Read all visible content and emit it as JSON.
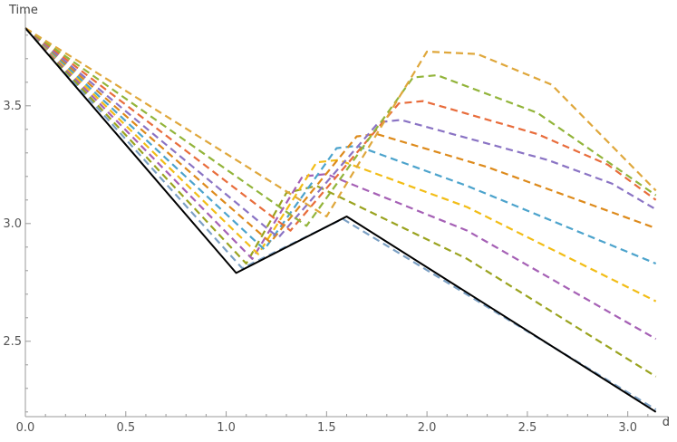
{
  "chart_data": {
    "type": "line",
    "title": "",
    "xlabel": "d",
    "ylabel": "Time",
    "xlim": [
      0,
      3.2
    ],
    "ylim": [
      2.18,
      3.88
    ],
    "grid": false,
    "legend": "none",
    "x_ticks": [
      "0.0",
      "0.5",
      "1.0",
      "1.5",
      "2.0",
      "2.5",
      "3.0"
    ],
    "x_tick_values": [
      0,
      0.5,
      1.0,
      1.5,
      2.0,
      2.5,
      3.0
    ],
    "y_ticks": [
      "2.5",
      "3.0",
      "3.5"
    ],
    "y_tick_values": [
      2.5,
      3.0,
      3.5
    ],
    "series": [
      {
        "color": "#000000",
        "dashed": false,
        "points": [
          [
            0,
            3.83
          ],
          [
            1.05,
            2.79
          ],
          [
            1.6,
            3.03
          ],
          [
            3.14,
            2.2
          ]
        ]
      },
      {
        "color": "#7ba0c4",
        "dashed": true,
        "points": [
          [
            0,
            3.83
          ],
          [
            1.08,
            2.81
          ],
          [
            1.58,
            3.02
          ],
          [
            3.14,
            2.21
          ]
        ]
      },
      {
        "color": "#9aa31f",
        "dashed": true,
        "points": [
          [
            0,
            3.83
          ],
          [
            1.1,
            2.83
          ],
          [
            1.3,
            3.13
          ],
          [
            1.45,
            3.16
          ],
          [
            2.2,
            2.85
          ],
          [
            3.14,
            2.35
          ]
        ]
      },
      {
        "color": "#a560b5",
        "dashed": true,
        "points": [
          [
            0,
            3.83
          ],
          [
            1.13,
            2.85
          ],
          [
            1.38,
            3.2
          ],
          [
            1.5,
            3.21
          ],
          [
            2.2,
            2.97
          ],
          [
            3.14,
            2.51
          ]
        ]
      },
      {
        "color": "#f2bd16",
        "dashed": true,
        "points": [
          [
            0,
            3.83
          ],
          [
            1.16,
            2.87
          ],
          [
            1.45,
            3.26
          ],
          [
            1.56,
            3.27
          ],
          [
            2.2,
            3.07
          ],
          [
            3.14,
            2.67
          ]
        ]
      },
      {
        "color": "#4ca3cc",
        "dashed": true,
        "points": [
          [
            0,
            3.83
          ],
          [
            1.19,
            2.89
          ],
          [
            1.55,
            3.32
          ],
          [
            1.65,
            3.33
          ],
          [
            2.2,
            3.16
          ],
          [
            3.14,
            2.83
          ]
        ]
      },
      {
        "color": "#dd8a1b",
        "dashed": true,
        "points": [
          [
            0,
            3.83
          ],
          [
            1.22,
            2.92
          ],
          [
            1.65,
            3.37
          ],
          [
            1.75,
            3.38
          ],
          [
            2.3,
            3.24
          ],
          [
            3.14,
            2.98
          ]
        ]
      },
      {
        "color": "#8a73c4",
        "dashed": true,
        "points": [
          [
            0,
            3.83
          ],
          [
            1.26,
            2.94
          ],
          [
            1.76,
            3.43
          ],
          [
            1.87,
            3.44
          ],
          [
            2.6,
            3.27
          ],
          [
            2.92,
            3.17
          ],
          [
            3.14,
            3.06
          ]
        ]
      },
      {
        "color": "#e86c3b",
        "dashed": true,
        "points": [
          [
            0,
            3.83
          ],
          [
            1.32,
            2.97
          ],
          [
            1.86,
            3.51
          ],
          [
            1.98,
            3.52
          ],
          [
            2.55,
            3.38
          ],
          [
            2.9,
            3.25
          ],
          [
            3.14,
            3.1
          ]
        ]
      },
      {
        "color": "#92b43a",
        "dashed": true,
        "points": [
          [
            0,
            3.83
          ],
          [
            1.4,
            2.99
          ],
          [
            1.93,
            3.62
          ],
          [
            2.05,
            3.63
          ],
          [
            2.55,
            3.47
          ],
          [
            3.14,
            3.12
          ]
        ]
      },
      {
        "color": "#dfa73b",
        "dashed": true,
        "points": [
          [
            0,
            3.83
          ],
          [
            1.5,
            3.03
          ],
          [
            2.0,
            3.73
          ],
          [
            2.25,
            3.72
          ],
          [
            2.62,
            3.59
          ],
          [
            3.14,
            3.14
          ]
        ]
      }
    ]
  }
}
